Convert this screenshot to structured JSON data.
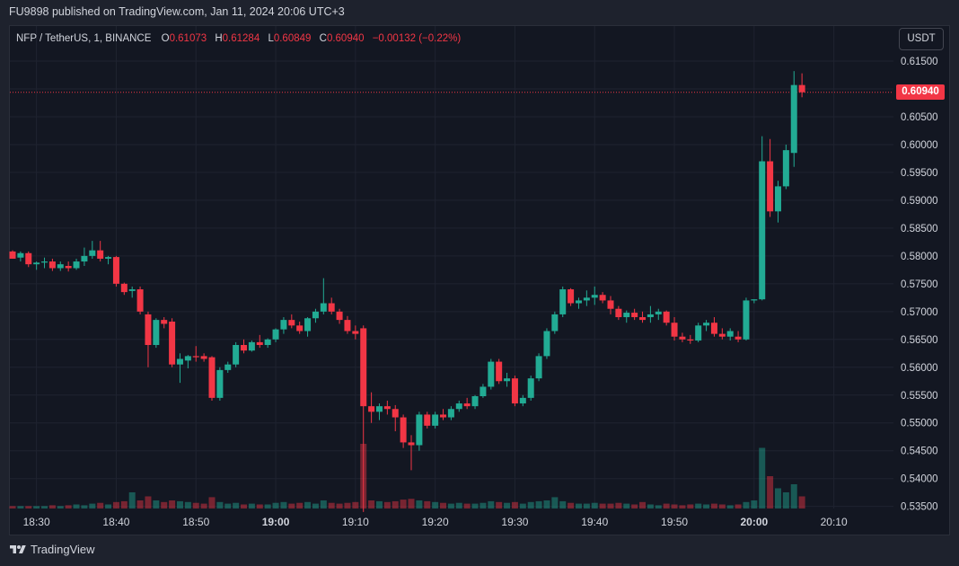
{
  "header": {
    "published": "FU9898 published on TradingView.com, Jan 11, 2024 20:06 UTC+3"
  },
  "legend": {
    "symbol": "NFP / TetherUS, 1, BINANCE",
    "o_label": "O",
    "o_value": "0.61073",
    "h_label": "H",
    "h_value": "0.61284",
    "l_label": "L",
    "l_value": "0.60849",
    "c_label": "C",
    "c_value": "0.60940",
    "change": "−0.00132 (−0.22%)"
  },
  "currency_button": "USDT",
  "last_price_tag": "0.60940",
  "footer": {
    "brand": "TradingView"
  },
  "colors": {
    "up": "#22ab94",
    "down": "#f23645",
    "background": "#131722",
    "grid": "#1f2330"
  },
  "chart_data": {
    "type": "candlestick",
    "symbol": "NFP / TetherUS",
    "interval": "1",
    "exchange": "BINANCE",
    "x_ticks": [
      "18:30",
      "18:40",
      "18:50",
      "19:00",
      "19:10",
      "19:20",
      "19:30",
      "19:40",
      "19:50",
      "20:00",
      "20:10"
    ],
    "x_ticks_bold": [
      "19:00",
      "20:00"
    ],
    "y_ticks": [
      "0.61500",
      "0.61000",
      "0.60500",
      "0.60000",
      "0.59500",
      "0.59000",
      "0.58500",
      "0.58000",
      "0.57500",
      "0.57000",
      "0.56500",
      "0.56000",
      "0.55500",
      "0.55000",
      "0.54500",
      "0.54000",
      "0.53500"
    ],
    "ylim": [
      0.5345,
      0.6185
    ],
    "grid": true,
    "last_price": 0.6094,
    "candles": [
      {
        "t": "18:27",
        "o": 0.5808,
        "h": 0.581,
        "l": 0.5795,
        "c": 0.5795,
        "v": 3
      },
      {
        "t": "18:28",
        "o": 0.5797,
        "h": 0.5808,
        "l": 0.579,
        "c": 0.5805,
        "v": 3
      },
      {
        "t": "18:29",
        "o": 0.5805,
        "h": 0.5808,
        "l": 0.578,
        "c": 0.5785,
        "v": 3
      },
      {
        "t": "18:30",
        "o": 0.5785,
        "h": 0.579,
        "l": 0.5775,
        "c": 0.5788,
        "v": 3
      },
      {
        "t": "18:31",
        "o": 0.5788,
        "h": 0.5797,
        "l": 0.5778,
        "c": 0.579,
        "v": 3
      },
      {
        "t": "18:32",
        "o": 0.579,
        "h": 0.5795,
        "l": 0.5773,
        "c": 0.5778,
        "v": 4
      },
      {
        "t": "18:33",
        "o": 0.5778,
        "h": 0.579,
        "l": 0.5773,
        "c": 0.5785,
        "v": 3
      },
      {
        "t": "18:34",
        "o": 0.5782,
        "h": 0.579,
        "l": 0.5772,
        "c": 0.5778,
        "v": 4
      },
      {
        "t": "18:35",
        "o": 0.5778,
        "h": 0.5795,
        "l": 0.5775,
        "c": 0.579,
        "v": 5
      },
      {
        "t": "18:36",
        "o": 0.579,
        "h": 0.5815,
        "l": 0.5782,
        "c": 0.58,
        "v": 4
      },
      {
        "t": "18:37",
        "o": 0.58,
        "h": 0.5827,
        "l": 0.5795,
        "c": 0.581,
        "v": 6
      },
      {
        "t": "18:38",
        "o": 0.581,
        "h": 0.5827,
        "l": 0.579,
        "c": 0.5795,
        "v": 7
      },
      {
        "t": "18:39",
        "o": 0.5795,
        "h": 0.58,
        "l": 0.5785,
        "c": 0.5798,
        "v": 5
      },
      {
        "t": "18:40",
        "o": 0.5798,
        "h": 0.58,
        "l": 0.5745,
        "c": 0.575,
        "v": 8
      },
      {
        "t": "18:41",
        "o": 0.575,
        "h": 0.5752,
        "l": 0.573,
        "c": 0.5735,
        "v": 9
      },
      {
        "t": "18:42",
        "o": 0.5737,
        "h": 0.5745,
        "l": 0.5725,
        "c": 0.574,
        "v": 20
      },
      {
        "t": "18:43",
        "o": 0.574,
        "h": 0.5745,
        "l": 0.5695,
        "c": 0.57,
        "v": 10
      },
      {
        "t": "18:44",
        "o": 0.5695,
        "h": 0.57,
        "l": 0.56,
        "c": 0.564,
        "v": 15
      },
      {
        "t": "18:45",
        "o": 0.564,
        "h": 0.5688,
        "l": 0.5635,
        "c": 0.5685,
        "v": 10
      },
      {
        "t": "18:46",
        "o": 0.5685,
        "h": 0.569,
        "l": 0.567,
        "c": 0.5678,
        "v": 8
      },
      {
        "t": "18:47",
        "o": 0.5682,
        "h": 0.5688,
        "l": 0.56,
        "c": 0.5605,
        "v": 10
      },
      {
        "t": "18:48",
        "o": 0.5605,
        "h": 0.5625,
        "l": 0.5572,
        "c": 0.5615,
        "v": 9
      },
      {
        "t": "18:49",
        "o": 0.5612,
        "h": 0.5622,
        "l": 0.5598,
        "c": 0.562,
        "v": 8
      },
      {
        "t": "18:50",
        "o": 0.562,
        "h": 0.5638,
        "l": 0.561,
        "c": 0.5618,
        "v": 7
      },
      {
        "t": "18:51",
        "o": 0.562,
        "h": 0.5625,
        "l": 0.561,
        "c": 0.5615,
        "v": 6
      },
      {
        "t": "18:52",
        "o": 0.5618,
        "h": 0.562,
        "l": 0.554,
        "c": 0.5545,
        "v": 14
      },
      {
        "t": "18:53",
        "o": 0.5545,
        "h": 0.56,
        "l": 0.554,
        "c": 0.5595,
        "v": 8
      },
      {
        "t": "18:54",
        "o": 0.5595,
        "h": 0.561,
        "l": 0.559,
        "c": 0.5605,
        "v": 6
      },
      {
        "t": "18:55",
        "o": 0.5605,
        "h": 0.5645,
        "l": 0.56,
        "c": 0.564,
        "v": 7
      },
      {
        "t": "18:56",
        "o": 0.564,
        "h": 0.565,
        "l": 0.5625,
        "c": 0.563,
        "v": 5
      },
      {
        "t": "18:57",
        "o": 0.563,
        "h": 0.5648,
        "l": 0.5628,
        "c": 0.5645,
        "v": 6
      },
      {
        "t": "18:58",
        "o": 0.5645,
        "h": 0.5658,
        "l": 0.5635,
        "c": 0.564,
        "v": 5
      },
      {
        "t": "18:59",
        "o": 0.564,
        "h": 0.5652,
        "l": 0.5635,
        "c": 0.565,
        "v": 5
      },
      {
        "t": "19:00",
        "o": 0.565,
        "h": 0.567,
        "l": 0.5645,
        "c": 0.5668,
        "v": 7
      },
      {
        "t": "19:01",
        "o": 0.5668,
        "h": 0.569,
        "l": 0.566,
        "c": 0.5685,
        "v": 8
      },
      {
        "t": "19:02",
        "o": 0.5685,
        "h": 0.5695,
        "l": 0.567,
        "c": 0.5675,
        "v": 6
      },
      {
        "t": "19:03",
        "o": 0.5675,
        "h": 0.5682,
        "l": 0.566,
        "c": 0.5665,
        "v": 7
      },
      {
        "t": "19:04",
        "o": 0.5665,
        "h": 0.569,
        "l": 0.5655,
        "c": 0.5688,
        "v": 8
      },
      {
        "t": "19:05",
        "o": 0.5688,
        "h": 0.5705,
        "l": 0.568,
        "c": 0.57,
        "v": 6
      },
      {
        "t": "19:06",
        "o": 0.57,
        "h": 0.576,
        "l": 0.5695,
        "c": 0.5715,
        "v": 10
      },
      {
        "t": "19:07",
        "o": 0.5715,
        "h": 0.5725,
        "l": 0.5695,
        "c": 0.57,
        "v": 7
      },
      {
        "t": "19:08",
        "o": 0.57,
        "h": 0.5705,
        "l": 0.5678,
        "c": 0.5685,
        "v": 6
      },
      {
        "t": "19:09",
        "o": 0.5685,
        "h": 0.5692,
        "l": 0.566,
        "c": 0.5665,
        "v": 7
      },
      {
        "t": "19:10",
        "o": 0.5665,
        "h": 0.5675,
        "l": 0.565,
        "c": 0.566,
        "v": 8
      },
      {
        "t": "19:11",
        "o": 0.567,
        "h": 0.5675,
        "l": 0.534,
        "c": 0.553,
        "v": 80
      },
      {
        "t": "19:12",
        "o": 0.553,
        "h": 0.5555,
        "l": 0.55,
        "c": 0.552,
        "v": 10
      },
      {
        "t": "19:13",
        "o": 0.552,
        "h": 0.5535,
        "l": 0.5505,
        "c": 0.553,
        "v": 9
      },
      {
        "t": "19:14",
        "o": 0.553,
        "h": 0.554,
        "l": 0.5515,
        "c": 0.5525,
        "v": 8
      },
      {
        "t": "19:15",
        "o": 0.5525,
        "h": 0.5532,
        "l": 0.5485,
        "c": 0.551,
        "v": 9
      },
      {
        "t": "19:16",
        "o": 0.551,
        "h": 0.5515,
        "l": 0.5455,
        "c": 0.5465,
        "v": 11
      },
      {
        "t": "19:17",
        "o": 0.5465,
        "h": 0.5478,
        "l": 0.5415,
        "c": 0.546,
        "v": 12
      },
      {
        "t": "19:18",
        "o": 0.546,
        "h": 0.552,
        "l": 0.545,
        "c": 0.5515,
        "v": 10
      },
      {
        "t": "19:19",
        "o": 0.5515,
        "h": 0.552,
        "l": 0.549,
        "c": 0.5495,
        "v": 9
      },
      {
        "t": "19:20",
        "o": 0.5495,
        "h": 0.552,
        "l": 0.549,
        "c": 0.5515,
        "v": 8
      },
      {
        "t": "19:21",
        "o": 0.5515,
        "h": 0.5525,
        "l": 0.5505,
        "c": 0.551,
        "v": 7
      },
      {
        "t": "19:22",
        "o": 0.551,
        "h": 0.553,
        "l": 0.5505,
        "c": 0.5525,
        "v": 6
      },
      {
        "t": "19:23",
        "o": 0.5525,
        "h": 0.554,
        "l": 0.552,
        "c": 0.5535,
        "v": 7
      },
      {
        "t": "19:24",
        "o": 0.5535,
        "h": 0.5545,
        "l": 0.5525,
        "c": 0.553,
        "v": 6
      },
      {
        "t": "19:25",
        "o": 0.553,
        "h": 0.555,
        "l": 0.5525,
        "c": 0.5548,
        "v": 6
      },
      {
        "t": "19:26",
        "o": 0.5548,
        "h": 0.557,
        "l": 0.5545,
        "c": 0.5565,
        "v": 7
      },
      {
        "t": "19:27",
        "o": 0.5565,
        "h": 0.5615,
        "l": 0.556,
        "c": 0.561,
        "v": 9
      },
      {
        "t": "19:28",
        "o": 0.561,
        "h": 0.5615,
        "l": 0.557,
        "c": 0.5575,
        "v": 8
      },
      {
        "t": "19:29",
        "o": 0.5575,
        "h": 0.559,
        "l": 0.5565,
        "c": 0.558,
        "v": 7
      },
      {
        "t": "19:30",
        "o": 0.558,
        "h": 0.5585,
        "l": 0.553,
        "c": 0.5535,
        "v": 8
      },
      {
        "t": "19:31",
        "o": 0.5535,
        "h": 0.555,
        "l": 0.553,
        "c": 0.5545,
        "v": 6
      },
      {
        "t": "19:32",
        "o": 0.5545,
        "h": 0.5585,
        "l": 0.554,
        "c": 0.558,
        "v": 8
      },
      {
        "t": "19:33",
        "o": 0.558,
        "h": 0.5625,
        "l": 0.5575,
        "c": 0.562,
        "v": 9
      },
      {
        "t": "19:34",
        "o": 0.562,
        "h": 0.567,
        "l": 0.5615,
        "c": 0.5665,
        "v": 10
      },
      {
        "t": "19:35",
        "o": 0.5665,
        "h": 0.57,
        "l": 0.566,
        "c": 0.5695,
        "v": 14
      },
      {
        "t": "19:36",
        "o": 0.5695,
        "h": 0.5745,
        "l": 0.569,
        "c": 0.574,
        "v": 9
      },
      {
        "t": "19:37",
        "o": 0.574,
        "h": 0.5742,
        "l": 0.571,
        "c": 0.5715,
        "v": 7
      },
      {
        "t": "19:38",
        "o": 0.5715,
        "h": 0.5725,
        "l": 0.5705,
        "c": 0.572,
        "v": 6
      },
      {
        "t": "19:39",
        "o": 0.572,
        "h": 0.5738,
        "l": 0.571,
        "c": 0.5725,
        "v": 6
      },
      {
        "t": "19:40",
        "o": 0.5725,
        "h": 0.5745,
        "l": 0.5712,
        "c": 0.573,
        "v": 7
      },
      {
        "t": "19:41",
        "o": 0.573,
        "h": 0.5735,
        "l": 0.5715,
        "c": 0.572,
        "v": 6
      },
      {
        "t": "19:42",
        "o": 0.572,
        "h": 0.5728,
        "l": 0.5695,
        "c": 0.5705,
        "v": 6
      },
      {
        "t": "19:43",
        "o": 0.5705,
        "h": 0.571,
        "l": 0.5685,
        "c": 0.569,
        "v": 7
      },
      {
        "t": "19:44",
        "o": 0.569,
        "h": 0.5702,
        "l": 0.568,
        "c": 0.5698,
        "v": 6
      },
      {
        "t": "19:45",
        "o": 0.5698,
        "h": 0.5705,
        "l": 0.5685,
        "c": 0.569,
        "v": 5
      },
      {
        "t": "19:46",
        "o": 0.569,
        "h": 0.57,
        "l": 0.568,
        "c": 0.5685,
        "v": 8
      },
      {
        "t": "19:47",
        "o": 0.569,
        "h": 0.571,
        "l": 0.568,
        "c": 0.5695,
        "v": 5
      },
      {
        "t": "19:48",
        "o": 0.5695,
        "h": 0.5705,
        "l": 0.5685,
        "c": 0.57,
        "v": 4
      },
      {
        "t": "19:49",
        "o": 0.57,
        "h": 0.5702,
        "l": 0.5675,
        "c": 0.568,
        "v": 6
      },
      {
        "t": "19:50",
        "o": 0.568,
        "h": 0.569,
        "l": 0.5648,
        "c": 0.5655,
        "v": 5
      },
      {
        "t": "19:51",
        "o": 0.5655,
        "h": 0.5662,
        "l": 0.5645,
        "c": 0.565,
        "v": 4
      },
      {
        "t": "19:52",
        "o": 0.565,
        "h": 0.5658,
        "l": 0.5642,
        "c": 0.5648,
        "v": 5
      },
      {
        "t": "19:53",
        "o": 0.5648,
        "h": 0.568,
        "l": 0.5645,
        "c": 0.5675,
        "v": 6
      },
      {
        "t": "19:54",
        "o": 0.5675,
        "h": 0.5685,
        "l": 0.5665,
        "c": 0.568,
        "v": 5
      },
      {
        "t": "19:55",
        "o": 0.568,
        "h": 0.569,
        "l": 0.5655,
        "c": 0.566,
        "v": 6
      },
      {
        "t": "19:56",
        "o": 0.566,
        "h": 0.567,
        "l": 0.565,
        "c": 0.5655,
        "v": 5
      },
      {
        "t": "19:57",
        "o": 0.5655,
        "h": 0.567,
        "l": 0.5648,
        "c": 0.5665,
        "v": 4
      },
      {
        "t": "19:58",
        "o": 0.5655,
        "h": 0.5665,
        "l": 0.5645,
        "c": 0.565,
        "v": 5
      },
      {
        "t": "19:59",
        "o": 0.565,
        "h": 0.5725,
        "l": 0.5648,
        "c": 0.572,
        "v": 8
      },
      {
        "t": "20:00",
        "o": 0.572,
        "h": 0.5722,
        "l": 0.5715,
        "c": 0.5722,
        "v": 10
      },
      {
        "t": "20:01",
        "o": 0.5722,
        "h": 0.6015,
        "l": 0.572,
        "c": 0.597,
        "v": 75
      },
      {
        "t": "20:02",
        "o": 0.597,
        "h": 0.601,
        "l": 0.587,
        "c": 0.588,
        "v": 40
      },
      {
        "t": "20:03",
        "o": 0.588,
        "h": 0.5935,
        "l": 0.586,
        "c": 0.5925,
        "v": 25
      },
      {
        "t": "20:04",
        "o": 0.5925,
        "h": 0.6,
        "l": 0.592,
        "c": 0.599,
        "v": 20
      },
      {
        "t": "20:05",
        "o": 0.5985,
        "h": 0.6132,
        "l": 0.596,
        "c": 0.6107,
        "v": 30
      },
      {
        "t": "20:06",
        "o": 0.6107,
        "h": 0.6128,
        "l": 0.6085,
        "c": 0.6094,
        "v": 15
      }
    ]
  }
}
